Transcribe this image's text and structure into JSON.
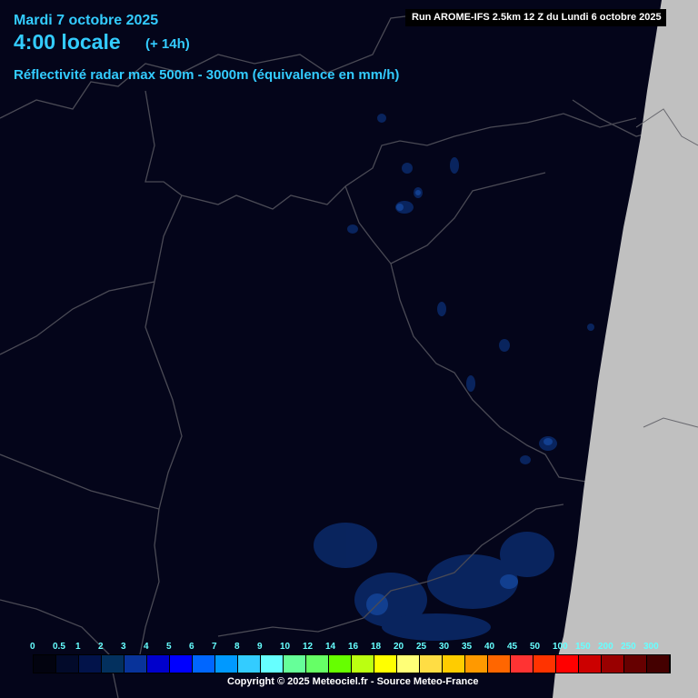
{
  "header": {
    "date": "Mardi 7 octobre 2025",
    "time": "4:00 locale",
    "lead": "(+ 14h)",
    "parameter": "Réflectivité radar max 500m - 3000m (équivalence en mm/h)",
    "run": "Run AROME-IFS 2.5km 12 Z du Lundi 6 octobre 2025"
  },
  "legend": {
    "labels": [
      "0",
      "0.5",
      "1",
      "2",
      "3",
      "4",
      "5",
      "6",
      "7",
      "8",
      "9",
      "10",
      "12",
      "14",
      "16",
      "18",
      "20",
      "25",
      "30",
      "35",
      "40",
      "45",
      "50",
      "100",
      "150",
      "200",
      "250",
      "300"
    ],
    "colors": [
      "#02030f",
      "#020a2a",
      "#02134a",
      "#03305e",
      "#08339a",
      "#0000cc",
      "#0000ff",
      "#0066ff",
      "#0099ff",
      "#33ccff",
      "#66ffff",
      "#66ff99",
      "#66ff66",
      "#66ff00",
      "#bbff11",
      "#ffff00",
      "#ffff77",
      "#ffdd44",
      "#ffcc00",
      "#ff9900",
      "#ff6600",
      "#ff3333",
      "#ff3300",
      "#ff0000",
      "#cc0000",
      "#990000",
      "#660000",
      "#440000"
    ]
  },
  "footer": {
    "copyright": "Copyright © 2025 Meteociel.fr - Source Meteo-France"
  },
  "colors": {
    "background": "#04051a",
    "outside_domain": "#c0c0c0",
    "borders": "#4a4a55",
    "title_text": "#33ccff"
  }
}
